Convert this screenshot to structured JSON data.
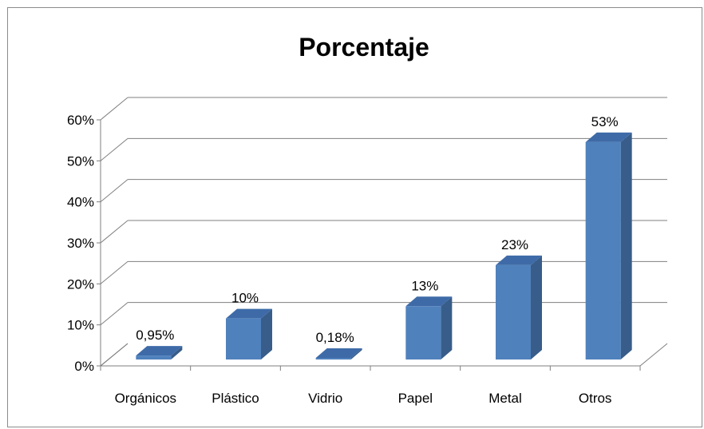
{
  "chart_data": {
    "type": "bar",
    "title": "Porcentaje",
    "categories": [
      "Orgánicos",
      "Plástico",
      "Vidrio",
      "Papel",
      "Metal",
      "Otros"
    ],
    "values": [
      0.95,
      10,
      0.18,
      13,
      23,
      53
    ],
    "data_labels": [
      "0,95%",
      "10%",
      "0,18%",
      "13%",
      "23%",
      "53%"
    ],
    "y_ticks": [
      0,
      10,
      20,
      30,
      40,
      50,
      60
    ],
    "y_tick_labels": [
      "0%",
      "10%",
      "20%",
      "30%",
      "40%",
      "50%",
      "60%"
    ],
    "ylim": [
      0,
      60
    ],
    "style": "3d-column",
    "grid": true,
    "legend": "none",
    "colors": {
      "bar_front": "#4f81bd",
      "bar_side": "#385d8a",
      "bar_top": "#3e6ba8",
      "grid": "#7f7f7f",
      "frame": "#8c8c8c",
      "text": "#000000"
    }
  }
}
